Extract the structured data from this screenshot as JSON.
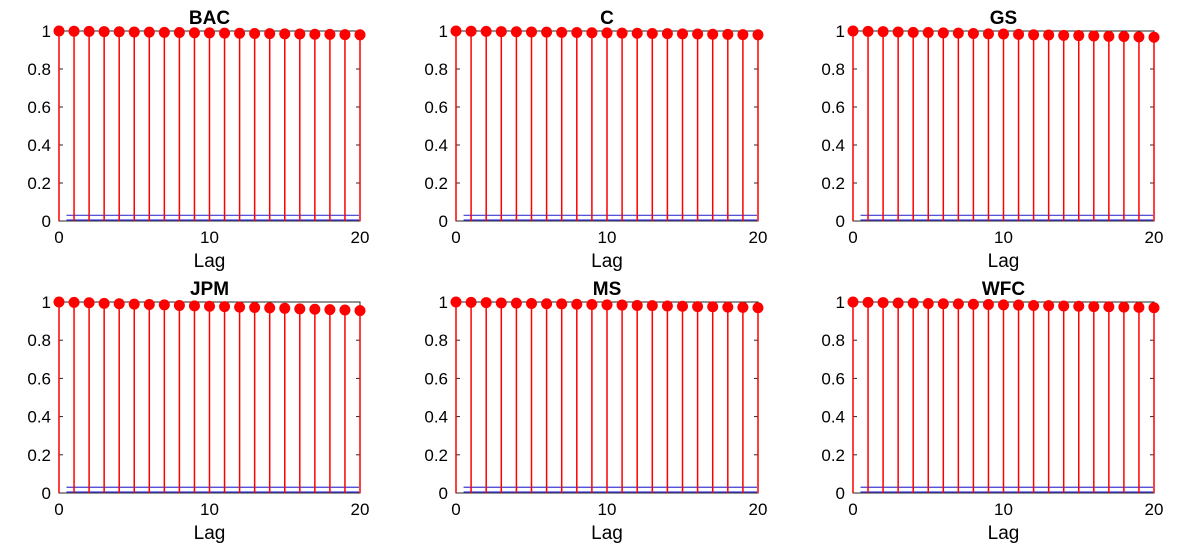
{
  "chart_data": [
    {
      "type": "stem",
      "title": "BAC",
      "xlabel": "Lag",
      "xlim": [
        0,
        20
      ],
      "ylim": [
        0,
        1
      ],
      "xticks": [
        0,
        10,
        20
      ],
      "yticks": [
        0,
        0.2,
        0.4,
        0.6,
        0.8,
        1
      ],
      "ytick_labels": [
        "0",
        "0.2",
        "0.4",
        "0.6",
        "0.8",
        "1"
      ],
      "x": [
        0,
        1,
        2,
        3,
        4,
        5,
        6,
        7,
        8,
        9,
        10,
        11,
        12,
        13,
        14,
        15,
        16,
        17,
        18,
        19,
        20
      ],
      "values": [
        1.0,
        0.999,
        0.998,
        0.997,
        0.996,
        0.995,
        0.994,
        0.993,
        0.992,
        0.991,
        0.99,
        0.989,
        0.988,
        0.987,
        0.986,
        0.985,
        0.984,
        0.983,
        0.982,
        0.981,
        0.98
      ],
      "bounds": [
        0.03,
        -0.03
      ],
      "colors": {
        "stem": "#ff0000",
        "bound": "#3b3bd6"
      }
    },
    {
      "type": "stem",
      "title": "C",
      "xlabel": "Lag",
      "xlim": [
        0,
        20
      ],
      "ylim": [
        0,
        1
      ],
      "xticks": [
        0,
        10,
        20
      ],
      "yticks": [
        0,
        0.2,
        0.4,
        0.6,
        0.8,
        1
      ],
      "ytick_labels": [
        "0",
        "0.2",
        "0.4",
        "0.6",
        "0.8",
        "1"
      ],
      "x": [
        0,
        1,
        2,
        3,
        4,
        5,
        6,
        7,
        8,
        9,
        10,
        11,
        12,
        13,
        14,
        15,
        16,
        17,
        18,
        19,
        20
      ],
      "values": [
        1.0,
        0.999,
        0.998,
        0.997,
        0.996,
        0.995,
        0.994,
        0.993,
        0.992,
        0.991,
        0.99,
        0.989,
        0.988,
        0.987,
        0.986,
        0.985,
        0.984,
        0.983,
        0.982,
        0.981,
        0.98
      ],
      "bounds": [
        0.03,
        -0.03
      ],
      "colors": {
        "stem": "#ff0000",
        "bound": "#3b3bd6"
      }
    },
    {
      "type": "stem",
      "title": "GS",
      "xlabel": "Lag",
      "xlim": [
        0,
        20
      ],
      "ylim": [
        0,
        1
      ],
      "xticks": [
        0,
        10,
        20
      ],
      "yticks": [
        0,
        0.2,
        0.4,
        0.6,
        0.8,
        1
      ],
      "ytick_labels": [
        "0",
        "0.2",
        "0.4",
        "0.6",
        "0.8",
        "1"
      ],
      "x": [
        0,
        1,
        2,
        3,
        4,
        5,
        6,
        7,
        8,
        9,
        10,
        11,
        12,
        13,
        14,
        15,
        16,
        17,
        18,
        19,
        20
      ],
      "values": [
        1.0,
        0.998,
        0.997,
        0.995,
        0.993,
        0.992,
        0.99,
        0.989,
        0.987,
        0.985,
        0.984,
        0.982,
        0.98,
        0.979,
        0.977,
        0.976,
        0.974,
        0.972,
        0.971,
        0.969,
        0.967
      ],
      "bounds": [
        0.03,
        -0.03
      ],
      "colors": {
        "stem": "#ff0000",
        "bound": "#3b3bd6"
      }
    },
    {
      "type": "stem",
      "title": "JPM",
      "xlabel": "Lag",
      "xlim": [
        0,
        20
      ],
      "ylim": [
        0,
        1
      ],
      "xticks": [
        0,
        10,
        20
      ],
      "yticks": [
        0,
        0.2,
        0.4,
        0.6,
        0.8,
        1
      ],
      "ytick_labels": [
        "0",
        "0.2",
        "0.4",
        "0.6",
        "0.8",
        "1"
      ],
      "x": [
        0,
        1,
        2,
        3,
        4,
        5,
        6,
        7,
        8,
        9,
        10,
        11,
        12,
        13,
        14,
        15,
        16,
        17,
        18,
        19,
        20
      ],
      "values": [
        1.0,
        0.998,
        0.996,
        0.993,
        0.991,
        0.989,
        0.987,
        0.985,
        0.982,
        0.98,
        0.978,
        0.976,
        0.973,
        0.971,
        0.969,
        0.967,
        0.964,
        0.962,
        0.96,
        0.958,
        0.955
      ],
      "bounds": [
        0.03,
        -0.03
      ],
      "colors": {
        "stem": "#ff0000",
        "bound": "#3b3bd6"
      }
    },
    {
      "type": "stem",
      "title": "MS",
      "xlabel": "Lag",
      "xlim": [
        0,
        20
      ],
      "ylim": [
        0,
        1
      ],
      "xticks": [
        0,
        10,
        20
      ],
      "yticks": [
        0,
        0.2,
        0.4,
        0.6,
        0.8,
        1
      ],
      "ytick_labels": [
        "0",
        "0.2",
        "0.4",
        "0.6",
        "0.8",
        "1"
      ],
      "x": [
        0,
        1,
        2,
        3,
        4,
        5,
        6,
        7,
        8,
        9,
        10,
        11,
        12,
        13,
        14,
        15,
        16,
        17,
        18,
        19,
        20
      ],
      "values": [
        1.0,
        0.998,
        0.997,
        0.995,
        0.994,
        0.992,
        0.991,
        0.99,
        0.988,
        0.987,
        0.985,
        0.984,
        0.982,
        0.981,
        0.979,
        0.978,
        0.976,
        0.975,
        0.973,
        0.972,
        0.97
      ],
      "bounds": [
        0.03,
        -0.03
      ],
      "colors": {
        "stem": "#ff0000",
        "bound": "#3b3bd6"
      }
    },
    {
      "type": "stem",
      "title": "WFC",
      "xlabel": "Lag",
      "xlim": [
        0,
        20
      ],
      "ylim": [
        0,
        1
      ],
      "xticks": [
        0,
        10,
        20
      ],
      "yticks": [
        0,
        0.2,
        0.4,
        0.6,
        0.8,
        1
      ],
      "ytick_labels": [
        "0",
        "0.2",
        "0.4",
        "0.6",
        "0.8",
        "1"
      ],
      "x": [
        0,
        1,
        2,
        3,
        4,
        5,
        6,
        7,
        8,
        9,
        10,
        11,
        12,
        13,
        14,
        15,
        16,
        17,
        18,
        19,
        20
      ],
      "values": [
        1.0,
        0.998,
        0.997,
        0.995,
        0.994,
        0.992,
        0.991,
        0.99,
        0.988,
        0.987,
        0.985,
        0.984,
        0.982,
        0.981,
        0.979,
        0.978,
        0.976,
        0.975,
        0.973,
        0.972,
        0.97
      ],
      "bounds": [
        0.03,
        -0.03
      ],
      "colors": {
        "stem": "#ff0000",
        "bound": "#3b3bd6"
      }
    }
  ]
}
